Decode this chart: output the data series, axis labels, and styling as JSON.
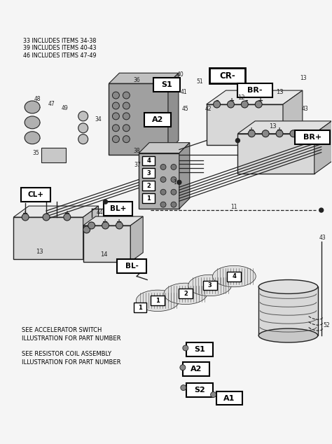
{
  "bg_color": "#f5f5f5",
  "line_color": "#222222",
  "gray_dark": "#888888",
  "gray_med": "#aaaaaa",
  "gray_light": "#cccccc",
  "gray_box": "#b0b0b0",
  "legend_lines": [
    "33 INCLUDES ITEMS 34-38",
    "39 INCLUDES ITEMS 40-43",
    "46 INCLUDES ITEMS 47-49"
  ],
  "note1_lines": [
    "SEE ACCELERATOR SWITCH",
    "ILLUSTRATION FOR PART NUMBER"
  ],
  "note2_lines": [
    "SEE RESISTOR COIL ASSEMBLY",
    "ILLUSTRATION FOR PART NUMBER"
  ],
  "figsize": [
    4.74,
    6.34
  ],
  "dpi": 100
}
